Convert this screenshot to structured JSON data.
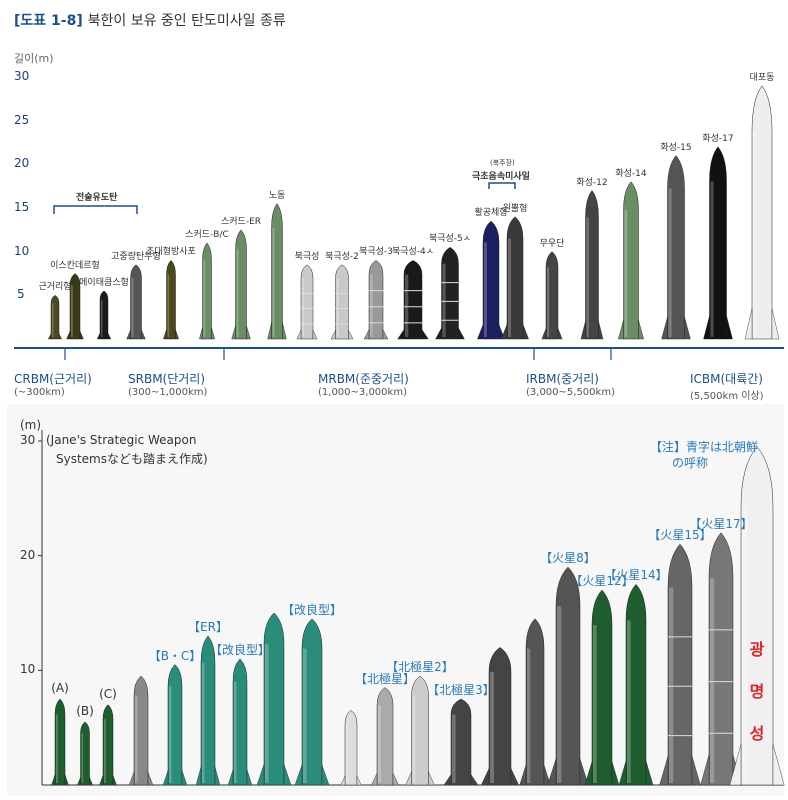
{
  "title": {
    "tag": "[도표 1-8]",
    "text": "북한이 보유 중인 탄도미사일 종류"
  },
  "top_panel": {
    "y_unit": "길이(m)",
    "y_ticks": [
      "30",
      "25",
      "20",
      "15",
      "10",
      "5"
    ],
    "group_label": "전술유도탄",
    "special_note": "(북주장)",
    "special_group": "극초음속미사일",
    "missiles": [
      {
        "name": "근거리형",
        "length_m": 5,
        "color": "#4a4a22"
      },
      {
        "name": "이스칸데르형",
        "length_m": 7.5,
        "color": "#3a3a16"
      },
      {
        "name": "에이태큼스형",
        "length_m": 5.5,
        "color": "#1a1a1a"
      },
      {
        "name": "고중량탄두형",
        "length_m": 8.5,
        "color": "#555555"
      },
      {
        "name": "초대형방사포",
        "length_m": 9,
        "color": "#4a4a1a"
      },
      {
        "name": "스커드-B/C",
        "length_m": 11,
        "color": "#6a8d66"
      },
      {
        "name": "스커드-ER",
        "length_m": 12.5,
        "color": "#6a8d66"
      },
      {
        "name": "노동",
        "length_m": 15.5,
        "color": "#6a8d66"
      },
      {
        "name": "북극성",
        "length_m": 8.5,
        "color": "#c9c9c9"
      },
      {
        "name": "북극성-2",
        "length_m": 8.5,
        "color": "#c9c9c9"
      },
      {
        "name": "북극성-3",
        "length_m": 9,
        "color": "#999999"
      },
      {
        "name": "북극성-4ㅅ",
        "length_m": 9,
        "color": "#1a1a1a"
      },
      {
        "name": "북극성-5ㅅ",
        "length_m": 10.5,
        "color": "#222222"
      },
      {
        "name": "활공체형",
        "length_m": 13.5,
        "color": "#1b1f5e"
      },
      {
        "name": "원뿔형",
        "length_m": 14,
        "color": "#3a3a3a"
      },
      {
        "name": "무우단",
        "length_m": 10,
        "color": "#444444"
      },
      {
        "name": "화성-12",
        "length_m": 17,
        "color": "#444444"
      },
      {
        "name": "화성-14",
        "length_m": 18,
        "color": "#6a8d66"
      },
      {
        "name": "화성-15",
        "length_m": 21,
        "color": "#555555"
      },
      {
        "name": "화성-17",
        "length_m": 22,
        "color": "#111111"
      },
      {
        "name": "대포동",
        "length_m": 29,
        "color": "#eeeeee"
      }
    ],
    "categories": [
      {
        "name": "CRBM(근거리)",
        "range": "(~300km)"
      },
      {
        "name": "SRBM(단거리)",
        "range": "(300~1,000km)"
      },
      {
        "name": "MRBM(준중거리)",
        "range": "(1,000~3,000km)"
      },
      {
        "name": "IRBM(중거리)",
        "range": "(3,000~5,500km)"
      },
      {
        "name": "ICBM(대륙간)",
        "range": "(5,500km 이상)"
      }
    ]
  },
  "bottom_panel": {
    "y_unit": "(m)",
    "y_ticks": [
      "30",
      "20",
      "10"
    ],
    "source_note_1": "(Jane's Strategic Weapon",
    "source_note_2": "Systemsなども踏まえ作成)",
    "footnote_1": "【注】青字は北朝鮮",
    "footnote_2": "の呼称",
    "hwasong17_text": "광명성",
    "missiles": [
      {
        "label": "(A)",
        "length_m": 7.5,
        "color": "#1e5e2e"
      },
      {
        "label": "(B)",
        "length_m": 5.5,
        "color": "#1e5e2e"
      },
      {
        "label": "(C)",
        "length_m": 7,
        "color": "#1e5e2e"
      },
      {
        "label": "",
        "length_m": 9.5,
        "color": "#888888"
      },
      {
        "label": "【B・C】",
        "length_m": 10.5,
        "color": "#2a8c7a"
      },
      {
        "label": "【ER】",
        "length_m": 13,
        "color": "#2a8c7a"
      },
      {
        "label": "【改良型】",
        "length_m": 11,
        "color": "#2a8c7a"
      },
      {
        "label": "",
        "length_m": 15,
        "color": "#2a8c7a"
      },
      {
        "label": "【改良型】",
        "length_m": 14.5,
        "color": "#2a8c7a"
      },
      {
        "label": "",
        "length_m": 6.5,
        "color": "#dddddd"
      },
      {
        "label": "【北極星】",
        "length_m": 8.5,
        "color": "#aaaaaa"
      },
      {
        "label": "【北極星2】",
        "length_m": 9.5,
        "color": "#cccccc"
      },
      {
        "label": "【北極星3】",
        "length_m": 7.5,
        "color": "#444444"
      },
      {
        "label": "",
        "length_m": 12,
        "color": "#444444"
      },
      {
        "label": "",
        "length_m": 14.5,
        "color": "#555555"
      },
      {
        "label": "【火星8】",
        "length_m": 19,
        "color": "#555555"
      },
      {
        "label": "【火星12】",
        "length_m": 17,
        "color": "#1e5e2e"
      },
      {
        "label": "【火星14】",
        "length_m": 17.5,
        "color": "#1e5e2e"
      },
      {
        "label": "【火星15】",
        "length_m": 21,
        "color": "#666666"
      },
      {
        "label": "【火星17】",
        "length_m": 22,
        "color": "#777777"
      },
      {
        "label": "",
        "length_m": 29.5,
        "color": "#f0f0f0"
      }
    ]
  }
}
